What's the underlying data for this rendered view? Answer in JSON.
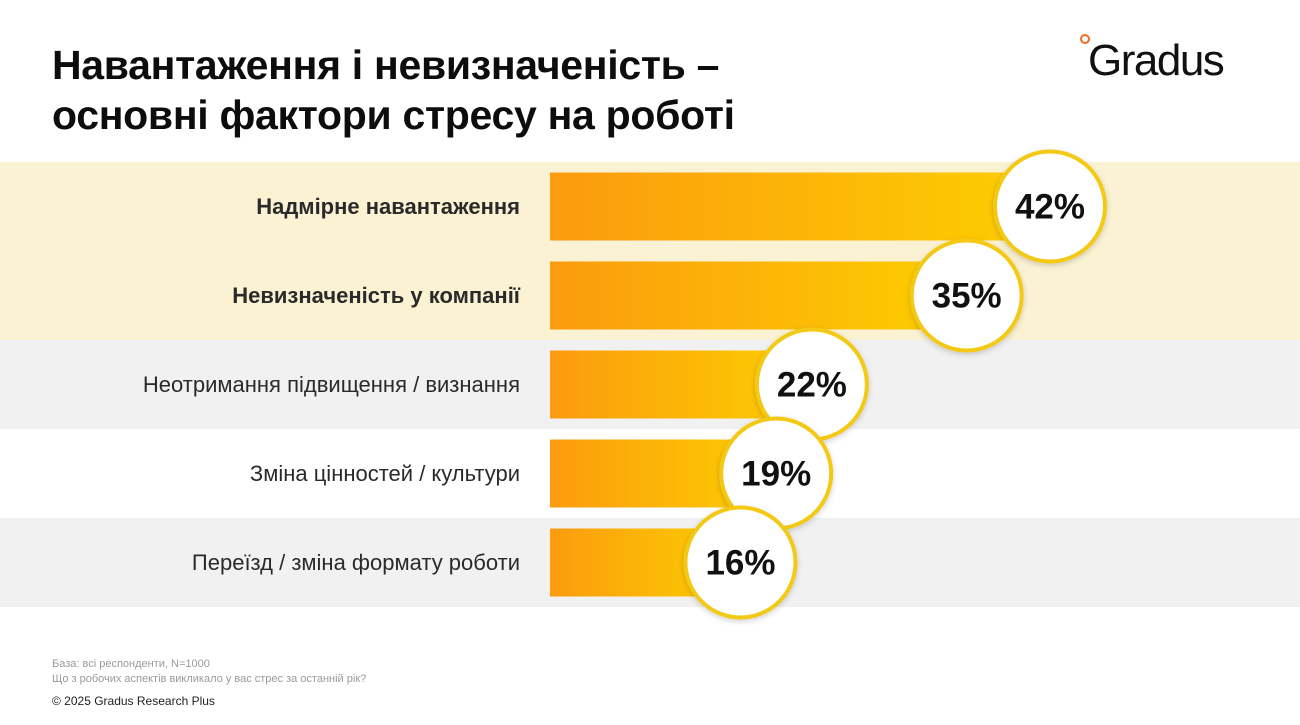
{
  "title_lines": [
    "Навантаження і невизначеність –",
    "основні фактори стресу на роботі"
  ],
  "logo_text": "Gradus",
  "colors": {
    "highlight_band": "#fbf2d3",
    "grey_band": "#f1f1f1",
    "bar_left": "#fb9b0e",
    "bar_right": "#fdcf00",
    "circle_border": "#f3c914"
  },
  "chart_data": {
    "type": "bar",
    "orientation": "horizontal",
    "categories": [
      "Надмірне навантаження",
      "Невизначеність у компанії",
      "Неотримання підвищення / визнання",
      "Зміна цінностей / культури",
      "Переїзд / зміна формату роботи"
    ],
    "values": [
      42,
      35,
      22,
      19,
      16
    ],
    "value_labels": [
      "42%",
      "35%",
      "22%",
      "19%",
      "16%"
    ],
    "highlighted": [
      true,
      true,
      false,
      false,
      false
    ],
    "unit": "%",
    "xlim": [
      0,
      42
    ],
    "grid": false
  },
  "footnote": {
    "base": "База: всі респонденти, N=1000",
    "question": "Що з робочих аспектів викликало у вас стрес за останній рік?",
    "copyright": "© 2025 Gradus Research Plus"
  }
}
